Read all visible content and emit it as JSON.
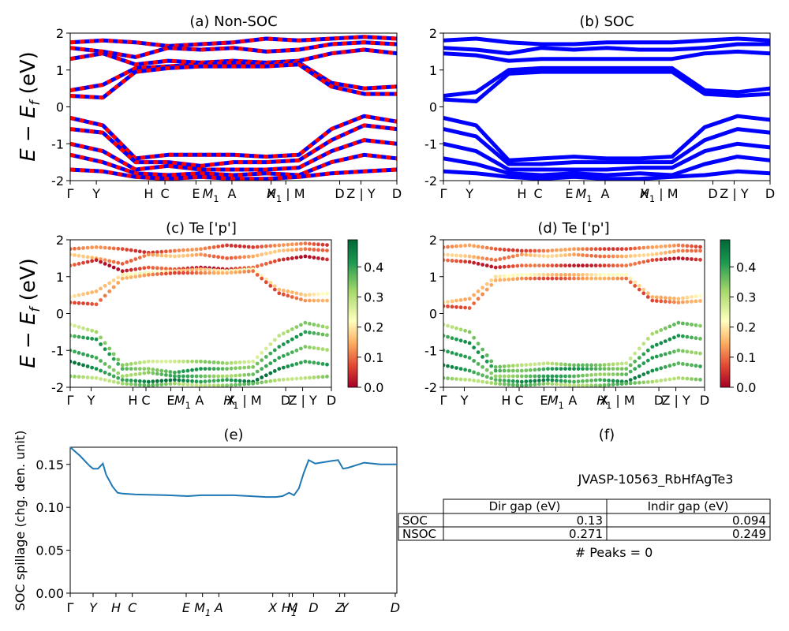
{
  "figure_id": "JVASP-10563_RbHfAgTe3",
  "colors": {
    "nsoc_red": "#ff0000",
    "nsoc_blue": "#0000ff",
    "soc_blue": "#0000ff",
    "spillage_line": "#1f77b4"
  },
  "band_labels": [
    "Γ",
    "Y",
    "H",
    "C",
    "E",
    "M1",
    "A",
    "X",
    "H1 | M",
    "D",
    "Z | Y",
    "D"
  ],
  "chart_data": [
    {
      "panel": "a",
      "type": "line",
      "title": "(a) Non-SOC",
      "ylabel": "E − E_f (eV)",
      "ylim": [
        -2,
        2
      ],
      "yticks": [
        -2,
        -1,
        0,
        1,
        2
      ],
      "xticklabels": [
        "Γ",
        "Y",
        "H",
        "C",
        "E",
        "M1",
        "A",
        "X",
        "H1 | M",
        "D",
        "Z | Y",
        "D"
      ],
      "bands": [
        [
          1.75,
          1.8,
          1.75,
          1.65,
          1.7,
          1.75,
          1.85,
          1.8,
          1.85,
          1.9,
          1.85
        ],
        [
          1.6,
          1.5,
          1.35,
          1.6,
          1.55,
          1.6,
          1.5,
          1.55,
          1.7,
          1.75,
          1.7
        ],
        [
          1.3,
          1.45,
          1.15,
          1.25,
          1.2,
          1.25,
          1.2,
          1.25,
          1.45,
          1.55,
          1.45
        ],
        [
          0.45,
          0.6,
          1.05,
          1.1,
          1.15,
          1.2,
          1.15,
          1.2,
          0.65,
          0.5,
          0.55
        ],
        [
          0.3,
          0.25,
          0.95,
          1.05,
          1.1,
          1.1,
          1.1,
          1.15,
          0.55,
          0.35,
          0.35
        ],
        [
          -0.3,
          -0.5,
          -1.4,
          -1.3,
          -1.3,
          -1.3,
          -1.35,
          -1.3,
          -0.6,
          -0.25,
          -0.4
        ],
        [
          -0.6,
          -0.7,
          -1.5,
          -1.5,
          -1.6,
          -1.5,
          -1.5,
          -1.45,
          -0.9,
          -0.5,
          -0.6
        ],
        [
          -1.0,
          -1.2,
          -1.7,
          -1.6,
          -1.7,
          -1.7,
          -1.7,
          -1.65,
          -1.2,
          -0.9,
          -1.0
        ],
        [
          -1.3,
          -1.5,
          -1.8,
          -1.85,
          -1.8,
          -1.85,
          -1.8,
          -1.85,
          -1.5,
          -1.3,
          -1.4
        ],
        [
          -1.7,
          -1.75,
          -1.9,
          -1.95,
          -1.9,
          -1.95,
          -1.95,
          -1.9,
          -1.8,
          -1.75,
          -1.7
        ]
      ]
    },
    {
      "panel": "b",
      "type": "line",
      "title": "(b) SOC",
      "ylim": [
        -2,
        2
      ],
      "yticks": [
        -2,
        -1,
        0,
        1,
        2
      ],
      "xticklabels": [
        "Γ",
        "Y",
        "H",
        "C",
        "E",
        "M1",
        "A",
        "X",
        "H1 | M",
        "D",
        "Z | Y",
        "D"
      ],
      "bands": [
        [
          1.8,
          1.85,
          1.75,
          1.7,
          1.7,
          1.75,
          1.75,
          1.75,
          1.8,
          1.85,
          1.8
        ],
        [
          1.6,
          1.55,
          1.45,
          1.6,
          1.55,
          1.6,
          1.55,
          1.55,
          1.6,
          1.7,
          1.7
        ],
        [
          1.45,
          1.4,
          1.25,
          1.3,
          1.3,
          1.3,
          1.3,
          1.3,
          1.45,
          1.5,
          1.45
        ],
        [
          0.3,
          0.4,
          1.0,
          1.05,
          1.05,
          1.05,
          1.05,
          1.05,
          0.45,
          0.4,
          0.5
        ],
        [
          0.2,
          0.15,
          0.9,
          0.95,
          0.95,
          0.95,
          0.95,
          0.95,
          0.35,
          0.3,
          0.35
        ],
        [
          -0.3,
          -0.5,
          -1.45,
          -1.4,
          -1.35,
          -1.4,
          -1.4,
          -1.35,
          -0.55,
          -0.25,
          -0.35
        ],
        [
          -0.6,
          -0.8,
          -1.55,
          -1.55,
          -1.5,
          -1.5,
          -1.5,
          -1.5,
          -0.9,
          -0.6,
          -0.7
        ],
        [
          -1.0,
          -1.2,
          -1.7,
          -1.7,
          -1.7,
          -1.7,
          -1.65,
          -1.65,
          -1.2,
          -1.0,
          -1.1
        ],
        [
          -1.4,
          -1.55,
          -1.8,
          -1.85,
          -1.8,
          -1.85,
          -1.8,
          -1.85,
          -1.55,
          -1.35,
          -1.45
        ],
        [
          -1.75,
          -1.8,
          -1.9,
          -1.95,
          -1.9,
          -1.95,
          -1.95,
          -1.9,
          -1.85,
          -1.75,
          -1.8
        ]
      ]
    },
    {
      "panel": "c",
      "type": "scatter",
      "title": "(c)  Te ['p']",
      "ylabel": "E − E_f (eV)",
      "ylim": [
        -2,
        2
      ],
      "colorbar": {
        "min": 0.0,
        "max": 0.45,
        "ticks": [
          "0.0",
          "0.1",
          "0.2",
          "0.3",
          "0.4"
        ],
        "colormap": "RdYlGn"
      },
      "xticklabels": [
        "Γ",
        "Y",
        "H",
        "C",
        "E",
        "M1",
        "A",
        "X",
        "H1 | M",
        "D",
        "Z | Y",
        "D"
      ],
      "band_weights": [
        0.08,
        0.12,
        0.05,
        0.18,
        0.1,
        0.28,
        0.35,
        0.33,
        0.4,
        0.3
      ]
    },
    {
      "panel": "d",
      "type": "scatter",
      "title": "(d) Te ['p']",
      "ylim": [
        -2,
        2
      ],
      "colorbar": {
        "min": 0.0,
        "max": 0.45,
        "ticks": [
          "0.0",
          "0.1",
          "0.2",
          "0.3",
          "0.4"
        ],
        "colormap": "RdYlGn"
      },
      "xticklabels": [
        "Γ",
        "Y",
        "H",
        "C",
        "E",
        "M1",
        "A",
        "X",
        "H1 | M",
        "D",
        "Z | Y",
        "D"
      ],
      "band_weights": [
        0.09,
        0.13,
        0.06,
        0.17,
        0.1,
        0.3,
        0.36,
        0.34,
        0.38,
        0.31
      ]
    },
    {
      "panel": "e",
      "type": "line",
      "title": "(e)",
      "ylabel": "SOC spillage (chg. den. unit)",
      "ylim": [
        0.0,
        0.17
      ],
      "yticks": [
        "0.00",
        "0.05",
        "0.10",
        "0.15"
      ],
      "xticklabels": [
        "Γ",
        "Y",
        "H",
        "C",
        "E",
        "M1",
        "A",
        "X",
        "H1",
        "M",
        "D",
        "Z",
        "Y",
        "D"
      ],
      "series": [
        {
          "x": [
            0,
            0.03,
            0.06,
            0.07,
            0.085,
            0.1,
            0.11,
            0.13,
            0.145,
            0.16,
            0.2,
            0.3,
            0.36,
            0.4,
            0.5,
            0.6,
            0.63,
            0.65,
            0.67,
            0.685,
            0.7,
            0.715,
            0.73,
            0.75,
            0.8,
            0.82,
            0.835,
            0.85,
            0.9,
            0.95,
            1.0
          ],
          "y": [
            0.17,
            0.16,
            0.148,
            0.145,
            0.145,
            0.151,
            0.138,
            0.124,
            0.117,
            0.116,
            0.115,
            0.114,
            0.113,
            0.114,
            0.114,
            0.112,
            0.112,
            0.113,
            0.117,
            0.114,
            0.122,
            0.14,
            0.155,
            0.151,
            0.154,
            0.155,
            0.145,
            0.146,
            0.152,
            0.15,
            0.15
          ]
        }
      ]
    },
    {
      "panel": "f",
      "type": "table",
      "title": "(f)",
      "caption": "JVASP-10563_RbHfAgTe3",
      "columns": [
        "Dir gap (eV)",
        "Indir gap (eV)"
      ],
      "rows": [
        {
          "label": "SOC",
          "values": [
            "0.13",
            "0.094"
          ]
        },
        {
          "label": "NSOC",
          "values": [
            "0.271",
            "0.249"
          ]
        }
      ],
      "footer": "# Peaks = 0"
    }
  ]
}
